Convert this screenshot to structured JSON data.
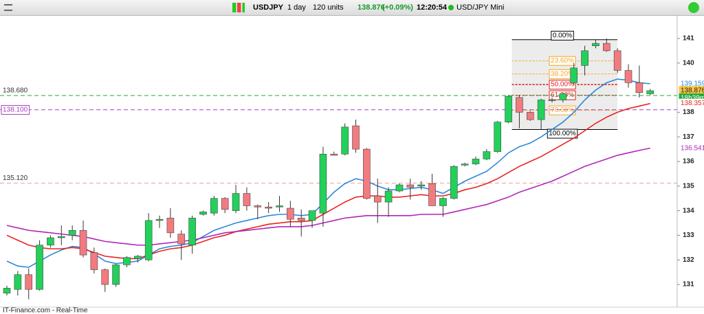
{
  "toolbar": {
    "symbol": "USDJPY",
    "period": "1 day",
    "units": "120 units",
    "change": "(+0.09%)",
    "time": "12:20:54",
    "instrument": "USD/JPY Mini"
  },
  "footer": "IT-Finance.com - Real-Time",
  "chart_data": {
    "type": "candlestick",
    "ylim": [
      130.08,
      141.92
    ],
    "yticks": [
      131,
      132,
      133,
      134,
      135,
      136,
      137,
      138,
      140,
      141
    ],
    "up_color": "#22d15a",
    "down_color": "#f27b80",
    "open": [
      130.65,
      130.8,
      131.4,
      130.8,
      132.6,
      132.9,
      133.0,
      133.2,
      132.3,
      131.6,
      131.0,
      131.8,
      132.05,
      132.0,
      133.6,
      133.7,
      133.05,
      132.6,
      133.85,
      133.9,
      134.5,
      134.0,
      134.7,
      134.2,
      134.15,
      134.15,
      134.1,
      133.7,
      133.6,
      133.9,
      136.3,
      136.3,
      137.45,
      136.5,
      134.6,
      134.35,
      134.8,
      135.05,
      135.0,
      135.1,
      134.2,
      134.5,
      135.85,
      135.9,
      136.1,
      136.4,
      137.6,
      138.6,
      138.0,
      137.7,
      138.5,
      138.5,
      139.2,
      139.9,
      140.7,
      140.8,
      140.5,
      139.7,
      139.2,
      138.75
    ],
    "high": [
      130.95,
      131.55,
      131.65,
      132.8,
      133.0,
      133.4,
      133.4,
      133.6,
      132.5,
      131.65,
      131.85,
      132.15,
      132.2,
      133.9,
      133.8,
      134.1,
      133.2,
      133.8,
      134.0,
      134.6,
      134.55,
      135.05,
      134.95,
      134.25,
      134.35,
      134.6,
      134.4,
      134.05,
      134.0,
      136.6,
      136.4,
      137.55,
      137.7,
      136.55,
      135.3,
      134.95,
      135.1,
      135.3,
      135.2,
      135.5,
      134.55,
      135.85,
      135.95,
      136.2,
      136.5,
      137.65,
      138.7,
      138.7,
      138.05,
      138.55,
      138.6,
      138.8,
      140.0,
      140.7,
      140.95,
      141.0,
      140.6,
      139.95,
      139.9,
      138.95
    ],
    "low": [
      130.55,
      130.55,
      130.4,
      130.75,
      132.5,
      132.6,
      132.8,
      132.1,
      131.45,
      130.7,
      130.9,
      131.7,
      131.9,
      131.95,
      133.3,
      132.9,
      132.0,
      132.25,
      133.8,
      133.8,
      133.9,
      133.9,
      134.0,
      133.65,
      133.9,
      133.95,
      133.35,
      132.95,
      133.3,
      133.35,
      136.25,
      136.25,
      136.35,
      134.45,
      133.5,
      133.75,
      134.75,
      134.45,
      134.85,
      134.2,
      133.75,
      134.45,
      135.8,
      135.85,
      136.05,
      136.35,
      137.55,
      137.35,
      137.65,
      137.3,
      138.4,
      138.4,
      139.1,
      139.5,
      140.6,
      140.45,
      139.6,
      139.0,
      138.6,
      138.7
    ],
    "close": [
      130.85,
      131.4,
      130.8,
      132.6,
      132.9,
      132.95,
      133.2,
      132.2,
      131.6,
      131.0,
      131.8,
      132.1,
      132.15,
      133.6,
      133.65,
      133.1,
      132.65,
      133.7,
      133.95,
      134.5,
      134.05,
      134.7,
      134.2,
      134.15,
      134.1,
      134.2,
      133.65,
      133.6,
      134.0,
      136.3,
      136.25,
      137.4,
      136.5,
      134.5,
      134.35,
      134.8,
      135.05,
      134.95,
      135.05,
      134.2,
      134.5,
      135.8,
      135.9,
      136.1,
      136.4,
      137.6,
      138.65,
      138.0,
      137.7,
      138.5,
      138.5,
      138.75,
      139.8,
      140.5,
      140.8,
      140.5,
      139.7,
      139.2,
      138.8,
      138.876
    ],
    "countdown": "18h39m",
    "countdown_color": "#22a93c",
    "last_tag_color": "#f6c544",
    "series": [
      {
        "color": "#2b87d8",
        "values": [
          131.95,
          131.75,
          131.7,
          131.95,
          132.2,
          132.4,
          132.55,
          132.5,
          132.25,
          131.95,
          131.85,
          131.9,
          131.95,
          132.2,
          132.45,
          132.55,
          132.6,
          132.7,
          132.95,
          133.2,
          133.35,
          133.5,
          133.6,
          133.7,
          133.8,
          133.85,
          133.85,
          133.8,
          133.85,
          134.3,
          134.75,
          135.1,
          135.3,
          135.2,
          135.0,
          134.85,
          134.85,
          134.9,
          134.95,
          134.85,
          134.7,
          134.95,
          135.2,
          135.4,
          135.6,
          135.95,
          136.35,
          136.6,
          136.75,
          137.0,
          137.3,
          137.6,
          138.0,
          138.5,
          138.9,
          139.2,
          139.35,
          139.3,
          139.2,
          139.159
        ]
      },
      {
        "color": "#e8231f",
        "values": [
          133.0,
          132.8,
          132.6,
          132.5,
          132.45,
          132.45,
          132.5,
          132.45,
          132.3,
          132.15,
          132.1,
          132.05,
          132.05,
          132.2,
          132.35,
          132.45,
          132.5,
          132.6,
          132.75,
          132.9,
          133.0,
          133.15,
          133.25,
          133.35,
          133.45,
          133.5,
          133.55,
          133.55,
          133.6,
          133.85,
          134.1,
          134.35,
          134.55,
          134.6,
          134.6,
          134.55,
          134.55,
          134.6,
          134.65,
          134.6,
          134.6,
          134.7,
          134.85,
          134.95,
          135.1,
          135.3,
          135.55,
          135.8,
          136.0,
          136.2,
          136.45,
          136.7,
          136.95,
          137.25,
          137.55,
          137.8,
          138.0,
          138.15,
          138.25,
          138.357
        ]
      },
      {
        "color": "#b026b8",
        "values": [
          133.4,
          133.3,
          133.2,
          133.15,
          133.1,
          133.05,
          133.0,
          132.95,
          132.85,
          132.75,
          132.7,
          132.65,
          132.6,
          132.6,
          132.65,
          132.7,
          132.75,
          132.8,
          132.9,
          133.0,
          133.1,
          133.15,
          133.2,
          133.25,
          133.3,
          133.35,
          133.35,
          133.35,
          133.4,
          133.5,
          133.6,
          133.7,
          133.75,
          133.8,
          133.8,
          133.8,
          133.8,
          133.8,
          133.85,
          133.85,
          133.85,
          133.95,
          134.05,
          134.15,
          134.25,
          134.4,
          134.55,
          134.75,
          134.9,
          135.05,
          135.2,
          135.4,
          135.6,
          135.8,
          135.95,
          136.1,
          136.25,
          136.35,
          136.45,
          136.541
        ]
      }
    ],
    "hlines": [
      {
        "value": 138.68,
        "label": "138.680",
        "color": "#2aa63a",
        "boxed": false
      },
      {
        "value": 138.1,
        "label": "138.100",
        "color": "#a53fc0",
        "boxed": true
      },
      {
        "value": 135.12,
        "label": "135.120",
        "color": "#f29aa6",
        "boxed": false
      }
    ],
    "fibonacci": {
      "high": 140.95,
      "low": 137.3,
      "start": 46,
      "end": 56,
      "levels": [
        {
          "value": 0,
          "label": "0.00%"
        },
        {
          "value": 23.6,
          "label": "23.60%"
        },
        {
          "value": 38.2,
          "label": "38.20%"
        },
        {
          "value": 50,
          "label": "50.00%"
        },
        {
          "value": 61.8,
          "label": "61.80%"
        },
        {
          "value": 78.6,
          "label": "78.60%"
        },
        {
          "value": 100,
          "label": "100.00%"
        }
      ],
      "colors": [
        "#000000",
        "#f5a623",
        "#f5a623",
        "#e02020",
        "#e02020",
        "#f5a623",
        "#000000"
      ]
    }
  }
}
